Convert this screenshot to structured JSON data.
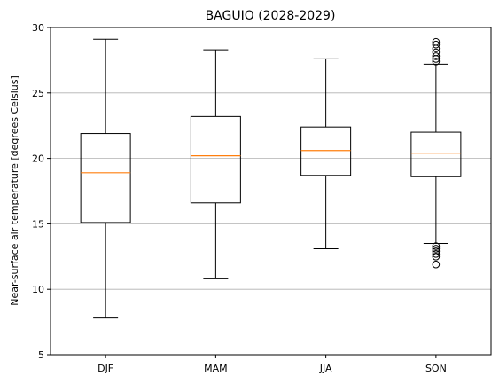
{
  "chart_data": {
    "type": "boxplot",
    "title": "BAGUIO (2028-2029)",
    "xlabel": "",
    "ylabel": "Near-surface air temperature [degrees Celsius]",
    "ylim": [
      5,
      30
    ],
    "yticks": [
      5,
      10,
      15,
      20,
      25,
      30
    ],
    "grid": "y-major",
    "categories": [
      "DJF",
      "MAM",
      "JJA",
      "SON"
    ],
    "boxes": [
      {
        "category": "DJF",
        "whisker_low": 7.8,
        "q1": 15.1,
        "median": 18.9,
        "q3": 21.9,
        "whisker_high": 29.1,
        "outliers": []
      },
      {
        "category": "MAM",
        "whisker_low": 10.8,
        "q1": 16.6,
        "median": 20.2,
        "q3": 23.2,
        "whisker_high": 28.3,
        "outliers": []
      },
      {
        "category": "JJA",
        "whisker_low": 13.1,
        "q1": 18.7,
        "median": 20.6,
        "q3": 22.4,
        "whisker_high": 27.6,
        "outliers": []
      },
      {
        "category": "SON",
        "whisker_low": 13.5,
        "q1": 18.6,
        "median": 20.4,
        "q3": 22.0,
        "whisker_high": 27.2,
        "outliers": [
          11.9,
          12.5,
          12.7,
          12.9,
          13.1,
          13.3,
          27.4,
          27.6,
          27.8,
          28.1,
          28.4,
          28.7,
          28.9
        ]
      }
    ],
    "colors": {
      "box": "#000000",
      "median": "#ff7f0e",
      "grid": "#b0b0b0",
      "background": "#ffffff"
    }
  }
}
